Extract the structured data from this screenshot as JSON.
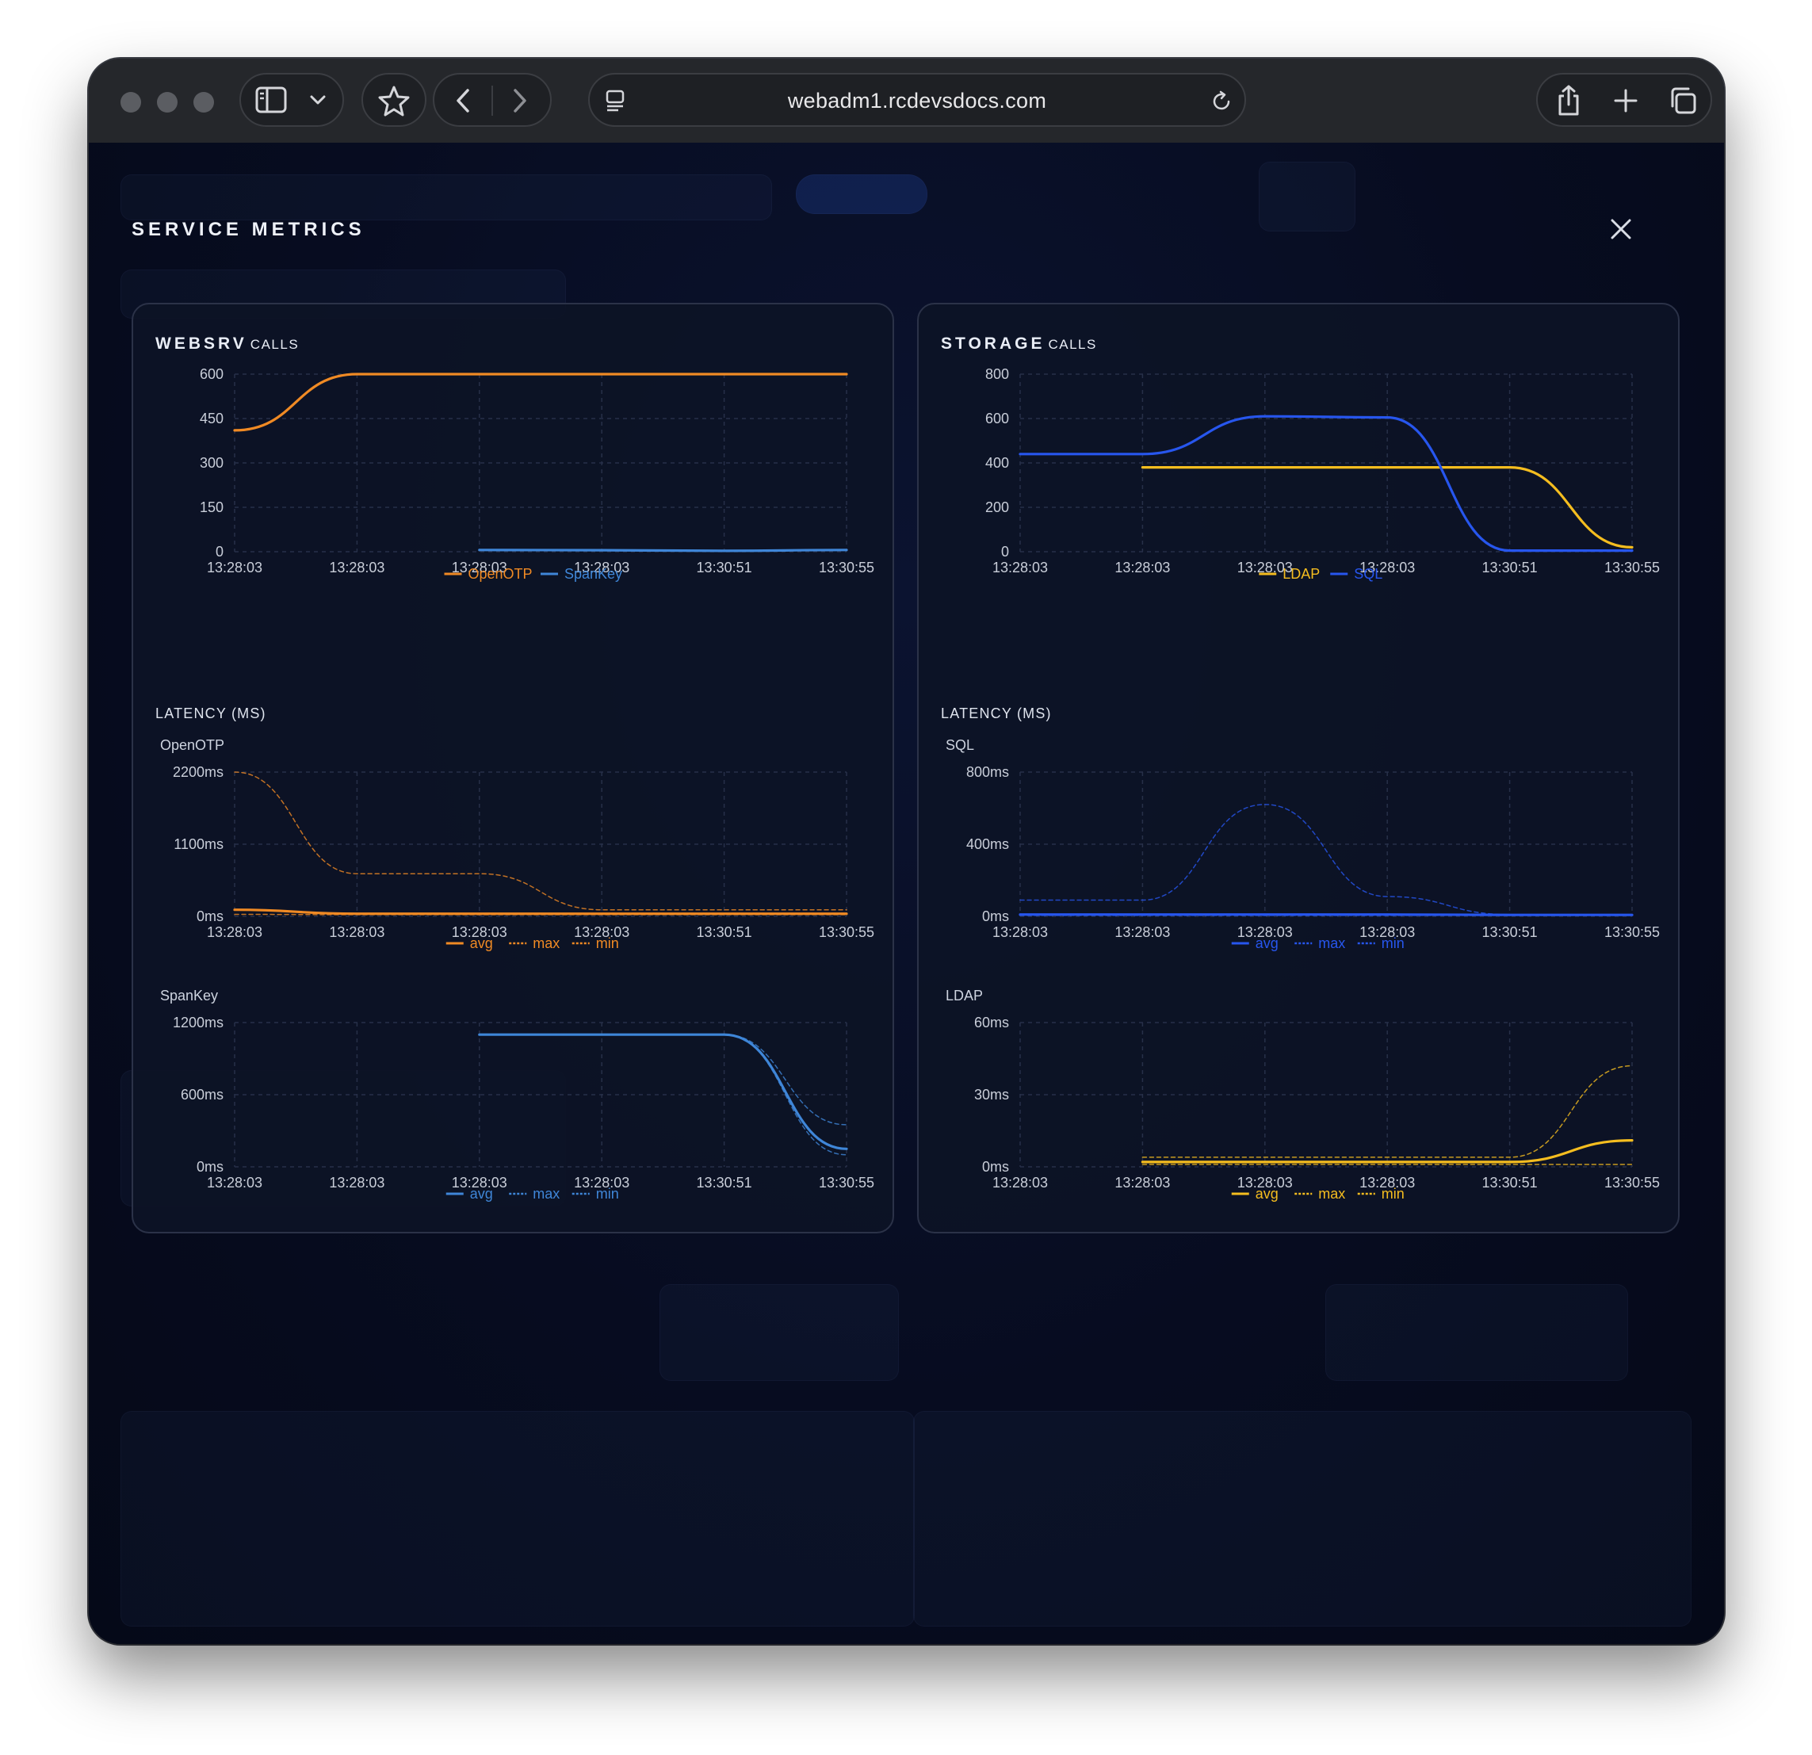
{
  "browser": {
    "url": "webadm1.rcdevsdocs.com"
  },
  "modal": {
    "title": "SERVICE METRICS"
  },
  "panels": [
    {
      "name_big": "WEBSRV",
      "name_small": "CALLS",
      "latency_title": "LATENCY (MS)",
      "sub1": "OpenOTP",
      "sub2": "SpanKey"
    },
    {
      "name_big": "STORAGE",
      "name_small": "CALLS",
      "latency_title": "LATENCY (MS)",
      "sub1": "SQL",
      "sub2": "LDAP"
    }
  ],
  "colors": {
    "orange": "#f08a24",
    "steel_blue": "#3f86d8",
    "yellow": "#f5bd1f",
    "blue": "#2756ee",
    "grid": "#273049",
    "tick": "#c9ced9"
  },
  "chart_data": [
    {
      "id": "websrv-calls",
      "type": "line",
      "x": [
        "13:28:03",
        "13:28:03",
        "13:28:03",
        "13:28:03",
        "13:30:51",
        "13:30:55"
      ],
      "yticks": [
        "600",
        "450",
        "300",
        "150",
        "0"
      ],
      "ylim": [
        0,
        600
      ],
      "series": [
        {
          "name": "OpenOTP",
          "color": "#f08a24",
          "style": "solid",
          "values": [
            410,
            600,
            600,
            600,
            600,
            600
          ]
        },
        {
          "name": "SpanKey",
          "color": "#3f86d8",
          "style": "solid",
          "values": [
            null,
            null,
            6,
            5,
            3,
            6
          ]
        }
      ]
    },
    {
      "id": "openotp-latency",
      "type": "line",
      "x": [
        "13:28:03",
        "13:28:03",
        "13:28:03",
        "13:28:03",
        "13:30:51",
        "13:30:55"
      ],
      "yticks": [
        "2200ms",
        "1100ms",
        "0ms"
      ],
      "ylim": [
        0,
        2200
      ],
      "series": [
        {
          "name": "avg",
          "color": "#f08a24",
          "style": "solid",
          "values": [
            100,
            40,
            40,
            40,
            40,
            40
          ]
        },
        {
          "name": "max",
          "color": "#f08a24",
          "style": "dashed",
          "values": [
            2200,
            650,
            650,
            100,
            100,
            100
          ]
        },
        {
          "name": "min",
          "color": "#f08a24",
          "style": "dashed",
          "values": [
            30,
            25,
            25,
            25,
            25,
            25
          ]
        }
      ]
    },
    {
      "id": "spankey-latency",
      "type": "line",
      "x": [
        "13:28:03",
        "13:28:03",
        "13:28:03",
        "13:28:03",
        "13:30:51",
        "13:30:55"
      ],
      "yticks": [
        "1200ms",
        "600ms",
        "0ms"
      ],
      "ylim": [
        0,
        1200
      ],
      "series": [
        {
          "name": "avg",
          "color": "#3f86d8",
          "style": "solid",
          "values": [
            null,
            null,
            1100,
            1100,
            1100,
            150
          ]
        },
        {
          "name": "max",
          "color": "#3f86d8",
          "style": "dashed",
          "values": [
            null,
            null,
            1100,
            1100,
            1100,
            350
          ]
        },
        {
          "name": "min",
          "color": "#3f86d8",
          "style": "dashed",
          "values": [
            null,
            null,
            1100,
            1100,
            1100,
            100
          ]
        }
      ]
    },
    {
      "id": "storage-calls",
      "type": "line",
      "x": [
        "13:28:03",
        "13:28:03",
        "13:28:03",
        "13:28:03",
        "13:30:51",
        "13:30:55"
      ],
      "yticks": [
        "800",
        "600",
        "400",
        "200",
        "0"
      ],
      "ylim": [
        0,
        800
      ],
      "series": [
        {
          "name": "LDAP",
          "color": "#f5bd1f",
          "style": "solid",
          "values": [
            null,
            380,
            380,
            380,
            380,
            20
          ]
        },
        {
          "name": "SQL",
          "color": "#2756ee",
          "style": "solid",
          "values": [
            440,
            440,
            610,
            605,
            5,
            5
          ]
        }
      ]
    },
    {
      "id": "sql-latency",
      "type": "line",
      "x": [
        "13:28:03",
        "13:28:03",
        "13:28:03",
        "13:28:03",
        "13:30:51",
        "13:30:55"
      ],
      "yticks": [
        "800ms",
        "400ms",
        "0ms"
      ],
      "ylim": [
        0,
        800
      ],
      "series": [
        {
          "name": "avg",
          "color": "#2756ee",
          "style": "solid",
          "values": [
            10,
            10,
            10,
            10,
            8,
            8
          ]
        },
        {
          "name": "max",
          "color": "#2756ee",
          "style": "dashed",
          "values": [
            90,
            90,
            620,
            110,
            10,
            10
          ]
        },
        {
          "name": "min",
          "color": "#2756ee",
          "style": "dashed",
          "values": [
            5,
            5,
            5,
            5,
            5,
            5
          ]
        }
      ]
    },
    {
      "id": "ldap-latency",
      "type": "line",
      "x": [
        "13:28:03",
        "13:28:03",
        "13:28:03",
        "13:28:03",
        "13:30:51",
        "13:30:55"
      ],
      "yticks": [
        "60ms",
        "30ms",
        "0ms"
      ],
      "ylim": [
        0,
        60
      ],
      "series": [
        {
          "name": "avg",
          "color": "#f5bd1f",
          "style": "solid",
          "values": [
            null,
            2,
            2,
            2,
            2,
            11
          ]
        },
        {
          "name": "max",
          "color": "#f5bd1f",
          "style": "dashed",
          "values": [
            null,
            4,
            4,
            4,
            4,
            42
          ]
        },
        {
          "name": "min",
          "color": "#f5bd1f",
          "style": "dashed",
          "values": [
            null,
            1,
            1,
            1,
            1,
            1
          ]
        }
      ]
    }
  ]
}
